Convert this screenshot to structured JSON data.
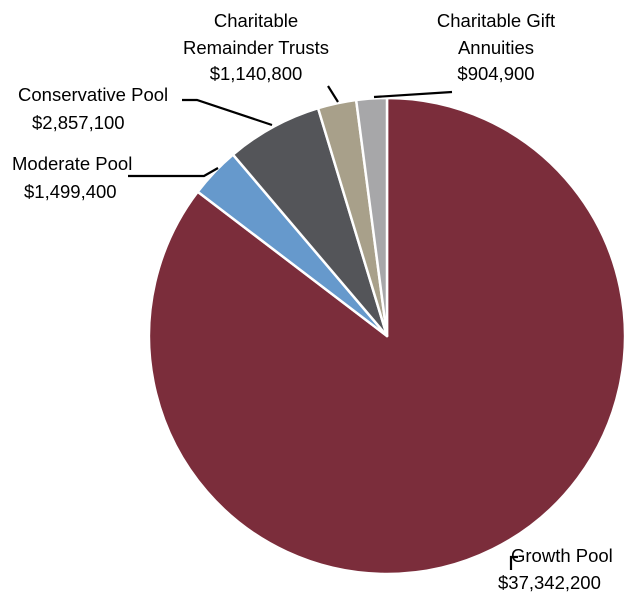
{
  "chart_data": {
    "type": "pie",
    "title": "",
    "start_angle_deg": 0,
    "direction": "clockwise",
    "slices": [
      {
        "label": "Growth Pool",
        "value_label": "$37,342,200",
        "value": 37342200,
        "color": "#7b2d3b"
      },
      {
        "label": "Moderate Pool",
        "value_label": "$1,499,400",
        "value": 1499400,
        "color": "#6699cc"
      },
      {
        "label": "Conservative Pool",
        "value_label": "$2,857,100",
        "value": 2857100,
        "color": "#545559"
      },
      {
        "label": "Charitable Remainder Trusts",
        "value_label": "$1,140,800",
        "value": 1140800,
        "color": "#a8a08a"
      },
      {
        "label": "Charitable Gift Annuities",
        "value_label": "$904,900",
        "value": 904900,
        "color": "#a7a7a9"
      }
    ]
  },
  "labels": {
    "growth": {
      "line1": "Growth Pool",
      "line2": "$37,342,200"
    },
    "moderate": {
      "line1": "Moderate Pool",
      "line2": "$1,499,400"
    },
    "conservative": {
      "line1": "Conservative Pool",
      "line2": "$2,857,100"
    },
    "crt": {
      "line1": "Charitable",
      "line2": "Remainder Trusts",
      "line3": "$1,140,800"
    },
    "cga": {
      "line1": "Charitable Gift",
      "line2": "Annuities",
      "line3": "$904,900"
    }
  }
}
